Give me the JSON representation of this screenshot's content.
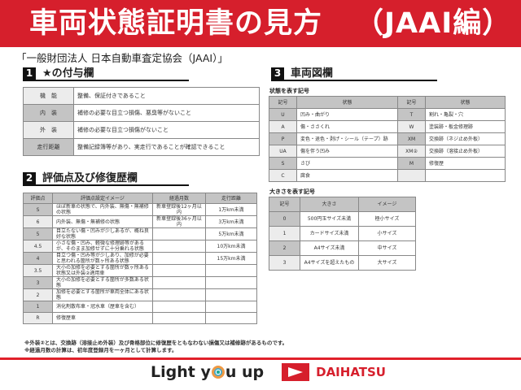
{
  "header": {
    "title": "車両状態証明書の見方",
    "subtitle": "（JAAI編）"
  },
  "organization": "「一般財団法人 日本自動車査定協会（JAAI）」",
  "section1": {
    "num": "1",
    "title": "★の付与欄",
    "rows": [
      [
        "機　能",
        "整備、保証付きであること"
      ],
      [
        "内　装",
        "補修の必要な目立つ損傷、悪臭等がないこと"
      ],
      [
        "外　装",
        "補修の必要な目立つ損傷がないこと"
      ],
      [
        "走行距離",
        "整備記録簿等があり、実走行であることが確認できること"
      ]
    ]
  },
  "section2": {
    "num": "2",
    "title": "評価点及び修復歴欄",
    "headers": [
      "評価点",
      "評価点設定イメージ",
      "経過月数",
      "走行距離"
    ],
    "rows": [
      [
        "S",
        "ほぼ新車の状態で、内外装、無傷・無補修の状態",
        "新車登録後12ヶ月以内",
        "1万km未満"
      ],
      [
        "6",
        "内外装、無傷・無補修の状態",
        "新車登録後36ヶ月以内",
        "3万km未満"
      ],
      [
        "5",
        "目立たない傷・凹みが少しあるが、概ね良好な状態",
        "",
        "5万km未満"
      ],
      [
        "4.5",
        "小さな傷・凹み、軽微な修理跡等があるが、そのまま加修せずに十分乗れる状態",
        "",
        "10万km未満"
      ],
      [
        "4",
        "目立つ傷・凹み等が少しあり、加修が必要と思われる箇所が数ヶ所ある状態",
        "",
        "15万km未満"
      ],
      [
        "3.5",
        "大小の加修を必要とする箇所が数ヶ所ある状態又は外装②適用車",
        "",
        ""
      ],
      [
        "3",
        "大小の加修を必要とする箇所が多数ある状態",
        "",
        ""
      ],
      [
        "2",
        "加修を必要とする箇所が車両全体にある状態",
        "",
        ""
      ],
      [
        "1",
        "消化剤散布車・冠水車（歴車を含む）",
        "",
        ""
      ],
      [
        "R",
        "修復歴車",
        "",
        ""
      ]
    ]
  },
  "notes": [
    "※外装②とは、交換跡（溶接止め外装）及び骨格部位に修復歴をともなわない損傷又は補修跡があるものです。",
    "※経過月数の計算は、初年度登録月を一ヶ月として計算します。"
  ],
  "section3": {
    "num": "3",
    "title": "車両図欄",
    "state_caption": "状態を表す記号",
    "state_headers": [
      "記号",
      "状態",
      "記号",
      "状態"
    ],
    "state_rows": [
      [
        "U",
        "凹み・曲がり",
        "T",
        "割れ・亀裂・穴"
      ],
      [
        "A",
        "傷・ささくれ",
        "W",
        "塗装跡・板金修理跡"
      ],
      [
        "P",
        "変色・退色・剥げ・シール（テープ）跡",
        "XM",
        "交換跡（ネジ止め外板）"
      ],
      [
        "UA",
        "傷を伴う凹み",
        "XM②",
        "交換跡（溶接止め外板）"
      ],
      [
        "S",
        "さび",
        "M",
        "修復歴"
      ],
      [
        "C",
        "腐食",
        "",
        ""
      ]
    ],
    "size_caption": "大きさを表す記号",
    "size_headers": [
      "記号",
      "大きさ",
      "イメージ"
    ],
    "size_rows": [
      [
        "0",
        "500円玉サイズ未満",
        "極小サイズ"
      ],
      [
        "1",
        "カードサイズ未満",
        "小サイズ"
      ],
      [
        "2",
        "A4サイズ未満",
        "中サイズ"
      ],
      [
        "3",
        "A4サイズを超えたもの",
        "大サイズ"
      ]
    ]
  },
  "footer": {
    "slogan_pre": "Light y",
    "slogan_post": "u up",
    "brand": "DAIHATSU"
  },
  "colors": {
    "brand_red": "#d61f2c",
    "header_gray": "#c4c4c4"
  }
}
